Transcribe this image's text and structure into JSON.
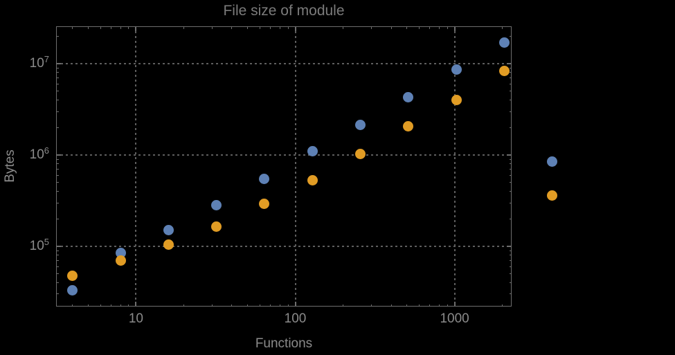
{
  "colors": {
    "background": "#000000",
    "frame": "#6e6e6e",
    "gridline": "#5e5e5e",
    "title_text": "#7b7b7b",
    "label_text": "#8b8b8b",
    "series_blue": "#5E81B5",
    "series_orange": "#E19C24"
  },
  "chart_data": {
    "type": "scatter",
    "title": "File size of module",
    "xlabel": "Functions",
    "ylabel": "Bytes",
    "x_scale": "log",
    "y_scale": "log",
    "xlim": [
      3.15,
      2280
    ],
    "ylim": [
      21900,
      25700000
    ],
    "grid": "dotted gray lines at decade positions, on",
    "legend": "none",
    "marker_diameter_px": 15,
    "x_gridlines": [
      10,
      100,
      1000
    ],
    "y_gridlines": [
      100000,
      1000000,
      10000000
    ],
    "x_ticks": [
      {
        "label": "10",
        "value": 10
      },
      {
        "label": "100",
        "value": 100
      },
      {
        "label": "1000",
        "value": 1000
      }
    ],
    "y_ticks": [
      {
        "mantissa": "10",
        "exponent": "5",
        "value": 100000
      },
      {
        "mantissa": "10",
        "exponent": "6",
        "value": 1000000
      },
      {
        "mantissa": "10",
        "exponent": "7",
        "value": 10000000
      }
    ],
    "x": [
      4,
      8,
      16,
      32,
      64,
      128,
      256,
      512,
      1024,
      2048,
      4096
    ],
    "series": [
      {
        "name": "blue-series",
        "color": "#5E81B5",
        "values": [
          33000,
          85000,
          150000,
          280000,
          550000,
          1100000,
          2150000,
          4300000,
          8600000,
          17000000,
          850000
        ]
      },
      {
        "name": "orange-series",
        "color": "#E19C24",
        "values": [
          48000,
          70000,
          105000,
          165000,
          290000,
          530000,
          1020000,
          2050000,
          4000000,
          8300000,
          360000
        ]
      }
    ]
  }
}
